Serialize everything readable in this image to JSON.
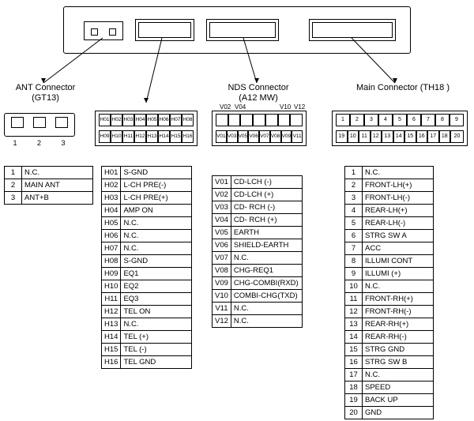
{
  "diagram": {
    "type": "wiring-pinout",
    "background_color": "#ffffff",
    "stroke_color": "#000000",
    "font_family": "Arial",
    "font_size_label": 11,
    "font_size_table": 9.5,
    "font_size_pin": 7
  },
  "connectors": {
    "ant": {
      "title": "ANT Connector",
      "subtitle": "(GT13)",
      "diagram_pins": [
        "1",
        "2",
        "3"
      ],
      "pins": [
        {
          "num": "1",
          "label": "N.C."
        },
        {
          "num": "2",
          "label": "MAIN ANT"
        },
        {
          "num": "3",
          "label": "ANT+B"
        }
      ]
    },
    "h": {
      "diagram_top": [
        "H01",
        "H02",
        "H03",
        "H04",
        "H05",
        "H06",
        "H07",
        "H08"
      ],
      "diagram_bot": [
        "H09",
        "H10",
        "H11",
        "H12",
        "H13",
        "H14",
        "H15",
        "H16"
      ],
      "pins": [
        {
          "num": "H01",
          "label": "S-GND"
        },
        {
          "num": "H02",
          "label": "L-CH PRE(-)"
        },
        {
          "num": "H03",
          "label": "L-CH PRE(+)"
        },
        {
          "num": "H04",
          "label": "AMP ON"
        },
        {
          "num": "H05",
          "label": "N.C."
        },
        {
          "num": "H06",
          "label": "N.C."
        },
        {
          "num": "H07",
          "label": "N.C."
        },
        {
          "num": "H08",
          "label": "S-GND"
        },
        {
          "num": "H09",
          "label": "EQ1"
        },
        {
          "num": "H10",
          "label": "EQ2"
        },
        {
          "num": "H11",
          "label": "EQ3"
        },
        {
          "num": "H12",
          "label": "TEL ON"
        },
        {
          "num": "H13",
          "label": "N.C."
        },
        {
          "num": "H14",
          "label": "TEL (+)"
        },
        {
          "num": "H15",
          "label": "TEL (-)"
        },
        {
          "num": "H16",
          "label": "TEL GND"
        }
      ]
    },
    "nds": {
      "title": "NDS Connector",
      "subtitle": "(A12 MW)",
      "top_labels": {
        "left": "V02",
        "mid": "V04",
        "r1": "V10",
        "r2": "V12"
      },
      "diagram_top": [
        "",
        "",
        "",
        "",
        "",
        "",
        ""
      ],
      "diagram_bot": [
        "V01",
        "V03",
        "V05",
        "V06",
        "V07",
        "V08",
        "V09",
        "V11"
      ],
      "pins": [
        {
          "num": "V01",
          "label": "CD-LCH (-)"
        },
        {
          "num": "V02",
          "label": "CD-LCH (+)"
        },
        {
          "num": "V03",
          "label": "CD- RCH (-)"
        },
        {
          "num": "V04",
          "label": "CD- RCH (+)"
        },
        {
          "num": "V05",
          "label": "EARTH"
        },
        {
          "num": "V06",
          "label": "SHIELD-EARTH"
        },
        {
          "num": "V07",
          "label": "N.C."
        },
        {
          "num": "V08",
          "label": "CHG-REQ1"
        },
        {
          "num": "V09",
          "label": "CHG-COMBI(RXD)"
        },
        {
          "num": "V10",
          "label": "COMBI-CHG(TXD)"
        },
        {
          "num": "V11",
          "label": "N.C."
        },
        {
          "num": "V12",
          "label": "N.C."
        }
      ]
    },
    "main": {
      "title": "Main Connector (TH18 )",
      "diagram_top": [
        "1",
        "2",
        "3",
        "4",
        "5",
        "6",
        "7",
        "8",
        "9"
      ],
      "diagram_bot": [
        "19",
        "10",
        "11",
        "12",
        "13",
        "14",
        "15",
        "16",
        "17",
        "18",
        "20"
      ],
      "pins": [
        {
          "num": "1",
          "label": "N.C."
        },
        {
          "num": "2",
          "label": "FRONT-LH(+)"
        },
        {
          "num": "3",
          "label": "FRONT-LH(-)"
        },
        {
          "num": "4",
          "label": "REAR-LH(+)"
        },
        {
          "num": "5",
          "label": "REAR-LH(-)"
        },
        {
          "num": "6",
          "label": "STRG SW A"
        },
        {
          "num": "7",
          "label": "ACC"
        },
        {
          "num": "8",
          "label": "ILLUMI CONT"
        },
        {
          "num": "9",
          "label": "ILLUMI (+)"
        },
        {
          "num": "10",
          "label": "N.C."
        },
        {
          "num": "11",
          "label": "FRONT-RH(+)"
        },
        {
          "num": "12",
          "label": "FRONT-RH(-)"
        },
        {
          "num": "13",
          "label": "REAR-RH(+)"
        },
        {
          "num": "14",
          "label": "REAR-RH(-)"
        },
        {
          "num": "15",
          "label": "STRG GND"
        },
        {
          "num": "16",
          "label": "STRG SW B"
        },
        {
          "num": "17",
          "label": "N.C."
        },
        {
          "num": "18",
          "label": "SPEED"
        },
        {
          "num": "19",
          "label": "BACK UP"
        },
        {
          "num": "20",
          "label": "GND"
        }
      ]
    }
  }
}
